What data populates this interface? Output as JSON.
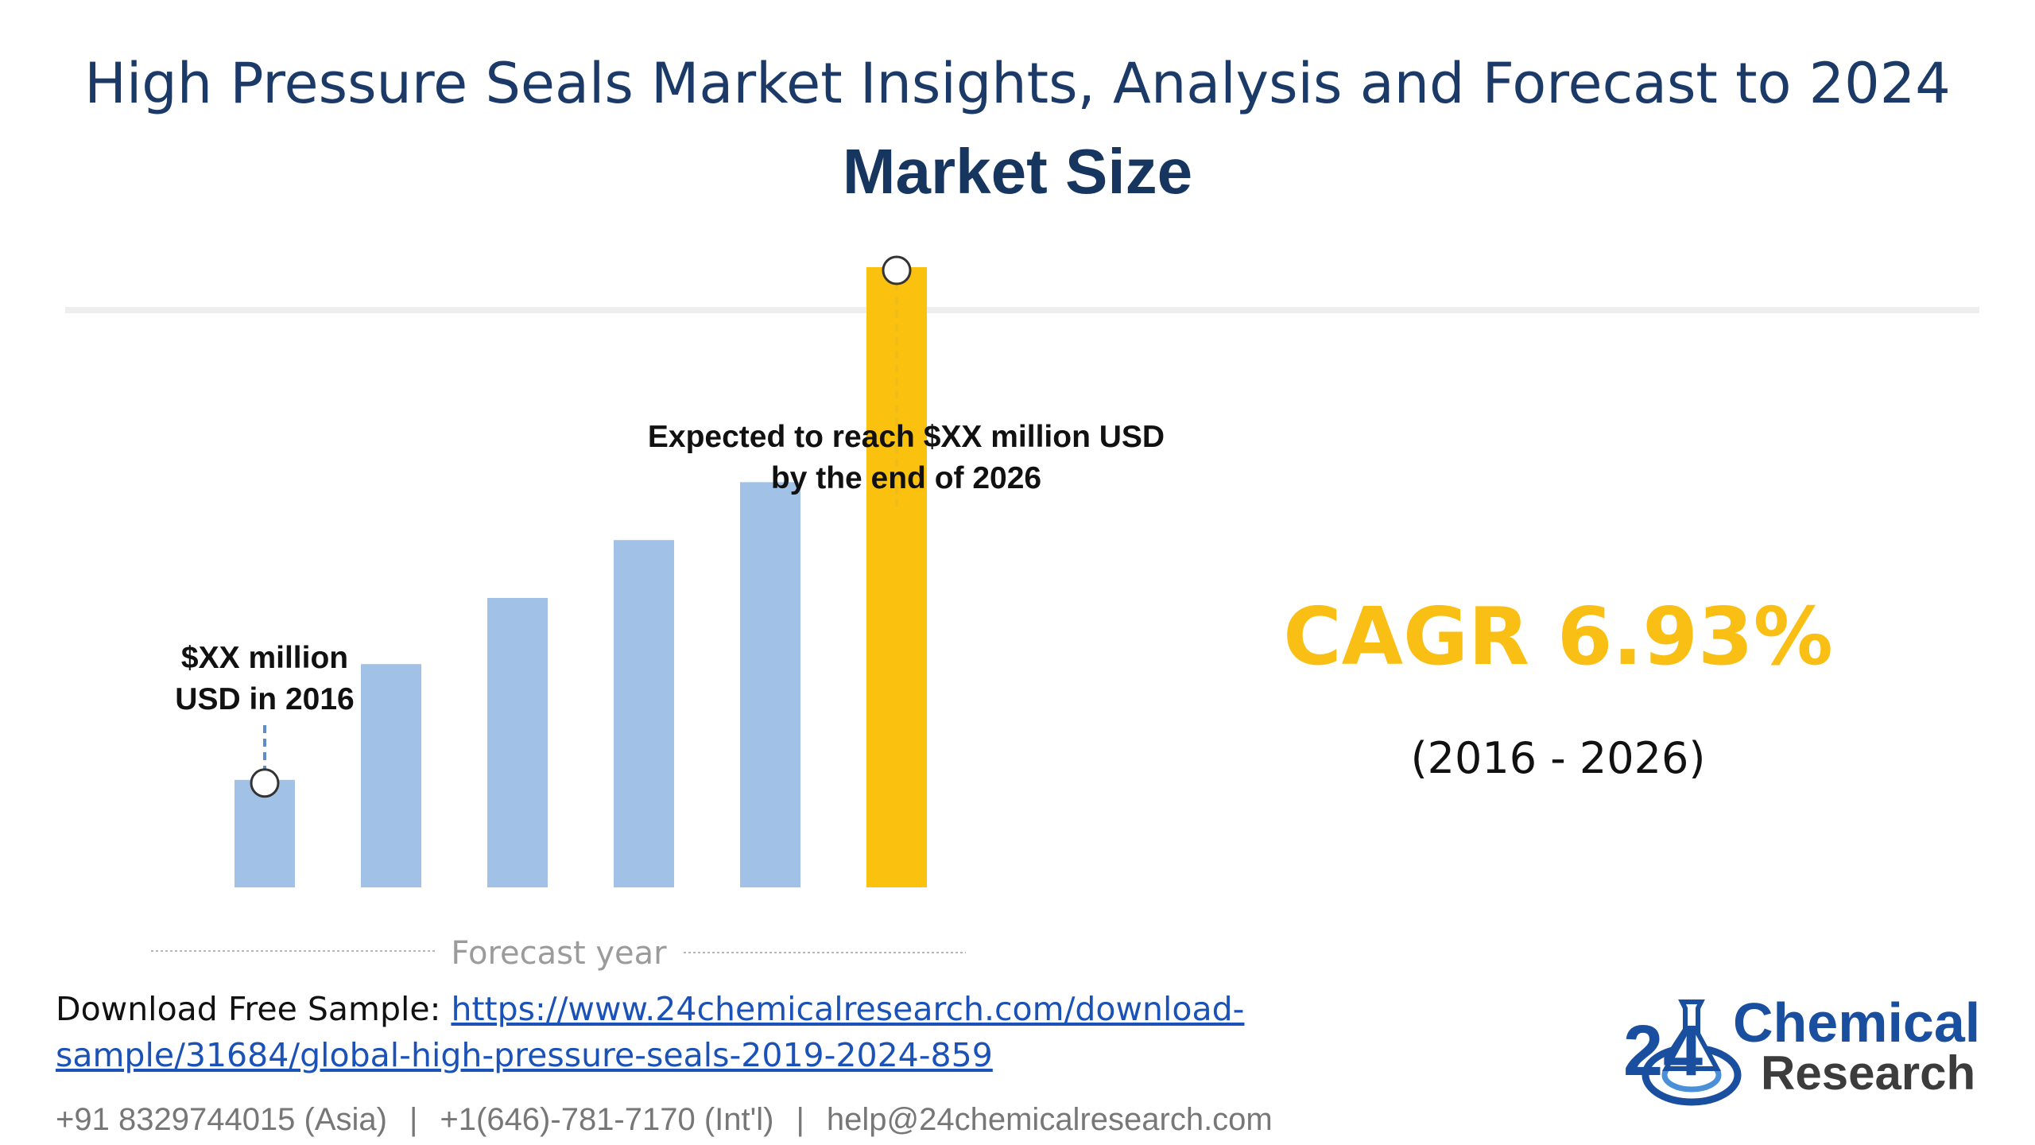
{
  "header": {
    "title": "High Pressure Seals Market Insights, Analysis and Forecast to 2024",
    "subtitle": "Market Size"
  },
  "chart_data": {
    "type": "bar",
    "values": [
      0.13,
      0.27,
      0.35,
      0.42,
      0.49,
      0.75
    ],
    "highlight_index": 5,
    "colors": {
      "bar": "#a1c2e6",
      "highlight": "#fac20f",
      "line_start": "#5b8fcc",
      "line_end": "#f0bc1a"
    },
    "start_label": [
      "$XX million",
      "USD in 2016"
    ],
    "end_label": [
      "Expected to reach $XX million USD",
      "by the end of 2026"
    ],
    "xlabel": "Forecast year",
    "ylim": [
      0,
      1
    ]
  },
  "cagr": {
    "value": "CAGR 6.93%",
    "range": "(2016 - 2026)"
  },
  "footer": {
    "download_label": "Download Free Sample: ",
    "download_link": "https://www.24chemicalresearch.com/download-sample/31684/global-high-pressure-seals-2019-2024-859",
    "phone_asia": "+91 8329744015 (Asia)",
    "phone_intl": "+1(646)-781-7170 (Int'l)",
    "email": "help@24chemicalresearch.com",
    "separator": "|"
  },
  "logo": {
    "number": "24",
    "line1": "Chemical",
    "line2": "Research",
    "colors": {
      "blue": "#1a4fa0",
      "grey": "#3c3c3c"
    }
  }
}
